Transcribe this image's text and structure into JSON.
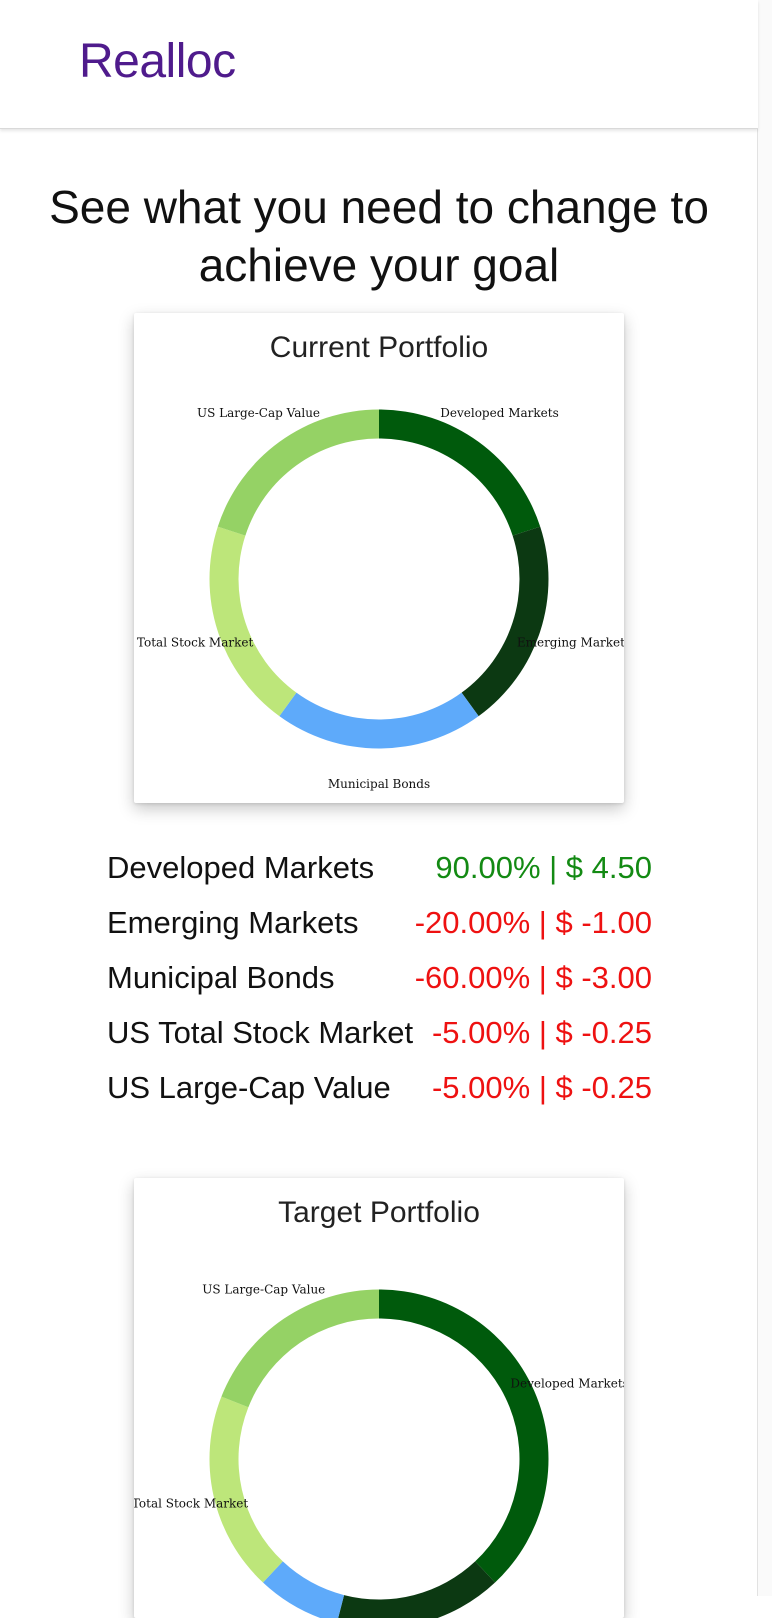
{
  "app": {
    "brand": "Realloc"
  },
  "headline": {
    "line1": "See what you need to change to",
    "line2": "achieve your goal"
  },
  "colors": {
    "brand": "#4f1b8c",
    "positive": "#138a13",
    "negative": "#ee1111"
  },
  "current_portfolio": {
    "title": "Current Portfolio",
    "chart_data": {
      "type": "pie",
      "style": "donut",
      "categories": [
        "Developed Markets",
        "Emerging Markets",
        "Municipal Bonds",
        "US Total Stock Market",
        "US Large-Cap Value"
      ],
      "values": [
        20,
        20,
        20,
        20,
        20
      ],
      "colors": [
        "#005a0c",
        "#0c3912",
        "#5eaafa",
        "#bde67a",
        "#95d265"
      ],
      "labels": [
        "Developed Markets",
        "Emerging Markets",
        "Municipal Bonds",
        "US Total Stock Market",
        "US Large-Cap Value"
      ],
      "legend": "none"
    }
  },
  "changes": [
    {
      "name": "Developed Markets",
      "change": "90.00% | $ 4.50",
      "sign": "positive"
    },
    {
      "name": "Emerging Markets",
      "change": "-20.00% | $ -1.00",
      "sign": "negative"
    },
    {
      "name": "Municipal Bonds",
      "change": "-60.00% | $ -3.00",
      "sign": "negative"
    },
    {
      "name": "US Total Stock Market",
      "change": "-5.00% | $ -0.25",
      "sign": "negative"
    },
    {
      "name": "US Large-Cap Value",
      "change": "-5.00% | $ -0.25",
      "sign": "negative"
    }
  ],
  "target_portfolio": {
    "title": "Target Portfolio",
    "chart_data": {
      "type": "pie",
      "style": "donut",
      "categories": [
        "Developed Markets",
        "Emerging Markets",
        "Municipal Bonds",
        "US Total Stock Market",
        "US Large-Cap Value"
      ],
      "values": [
        38,
        16,
        8,
        19,
        19
      ],
      "colors": [
        "#005a0c",
        "#0c3912",
        "#5eaafa",
        "#bde67a",
        "#95d265"
      ],
      "labels": [
        "Developed Markets",
        "",
        "",
        "US Total Stock Market",
        "US Large-Cap Value"
      ],
      "legend": "none"
    }
  }
}
